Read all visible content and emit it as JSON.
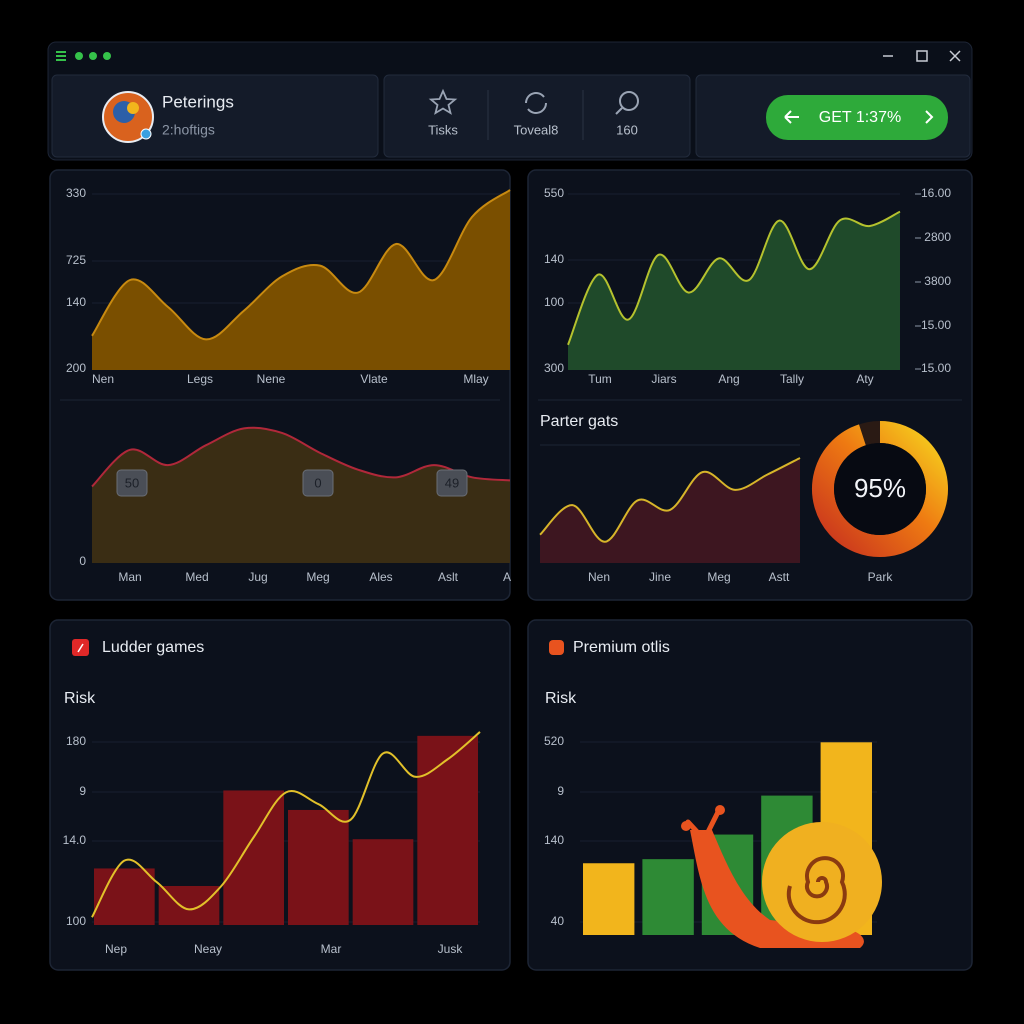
{
  "header": {
    "name": "Peterings",
    "subtitle": "2:hoftigs",
    "tabs": [
      "Tisks",
      "Toveal8",
      "160"
    ],
    "button": "GET 1:37%"
  },
  "chart_data": [
    {
      "type": "area",
      "ylabels": [
        "330",
        "725",
        "140",
        "200"
      ],
      "xlabels": [
        "Nen",
        "Legs",
        "Nene",
        "Vlate",
        "Mlay"
      ],
      "values": [
        19,
        50,
        35,
        17,
        33,
        52,
        58,
        43,
        70,
        50,
        85,
        100
      ],
      "ylim": [
        0,
        100
      ],
      "color": "#c88a10",
      "fill": "#7a4f00"
    },
    {
      "type": "area",
      "ylabels": [
        "0"
      ],
      "xlabels": [
        "Man",
        "Med",
        "Jug",
        "Meg",
        "Ales",
        "Aslt",
        "A"
      ],
      "badges": [
        "50",
        "0",
        "49"
      ],
      "values": [
        50,
        74,
        64,
        77,
        88,
        85,
        72,
        61,
        56,
        64,
        56,
        54
      ],
      "ylim": [
        0,
        100
      ],
      "color": "#b0283a",
      "fill": "#3a2d14"
    },
    {
      "type": "area",
      "ylabels": [
        "550",
        "140",
        "100",
        "300"
      ],
      "y2labels": [
        "16.00",
        "2800",
        "3800",
        "15.00",
        "15.00"
      ],
      "xlabels": [
        "Tum",
        "Jiars",
        "Ang",
        "Tally",
        "Aty"
      ],
      "values": [
        14,
        53,
        28,
        64,
        43,
        62,
        50,
        83,
        56,
        83,
        80,
        88
      ],
      "ylim": [
        0,
        100
      ],
      "color": "#b5c22e",
      "fill": "#1f4a2a"
    },
    {
      "type": "area",
      "title": "Parter gats",
      "xlabels": [
        "Nen",
        "Jine",
        "Meg",
        "Astt"
      ],
      "values": [
        24,
        49,
        18,
        53,
        45,
        77,
        62,
        75,
        89
      ],
      "ylim": [
        0,
        100
      ],
      "color": "#d7b52a",
      "fill": "#3d1620"
    },
    {
      "type": "donut",
      "values": [
        95
      ],
      "value_labels": [
        "95%"
      ],
      "label": "Park",
      "colors": [
        "#f6d21e",
        "#ee7a12",
        "#c8321e"
      ]
    },
    {
      "type": "bar-line",
      "title": "Ludder games",
      "ylabel": "Risk",
      "ylabels": [
        "180",
        "9",
        "14.0",
        "100"
      ],
      "xlabels": [
        "Nep",
        "Neay",
        "Mar",
        "Jusk"
      ],
      "ylim": [
        0,
        100
      ],
      "series": [
        {
          "values": [
            29,
            20,
            69,
            59,
            44,
            97
          ],
          "color": "#7a1218"
        },
        {
          "values": [
            4,
            33,
            22,
            8,
            20,
            45,
            68,
            62,
            54,
            88,
            76,
            85,
            99
          ],
          "color": "#e2c12a"
        }
      ]
    },
    {
      "type": "bar",
      "title": "Premium otlis",
      "ylabel": "Risk",
      "ylabels": [
        "520",
        "9",
        "140",
        "40"
      ],
      "ylim": [
        0,
        100
      ],
      "values": [
        35,
        37,
        49,
        68,
        94
      ],
      "colors": [
        "#f2b51c",
        "#2e8a35",
        "#2e8a35",
        "#2e8a35",
        "#f2b51c"
      ]
    }
  ]
}
